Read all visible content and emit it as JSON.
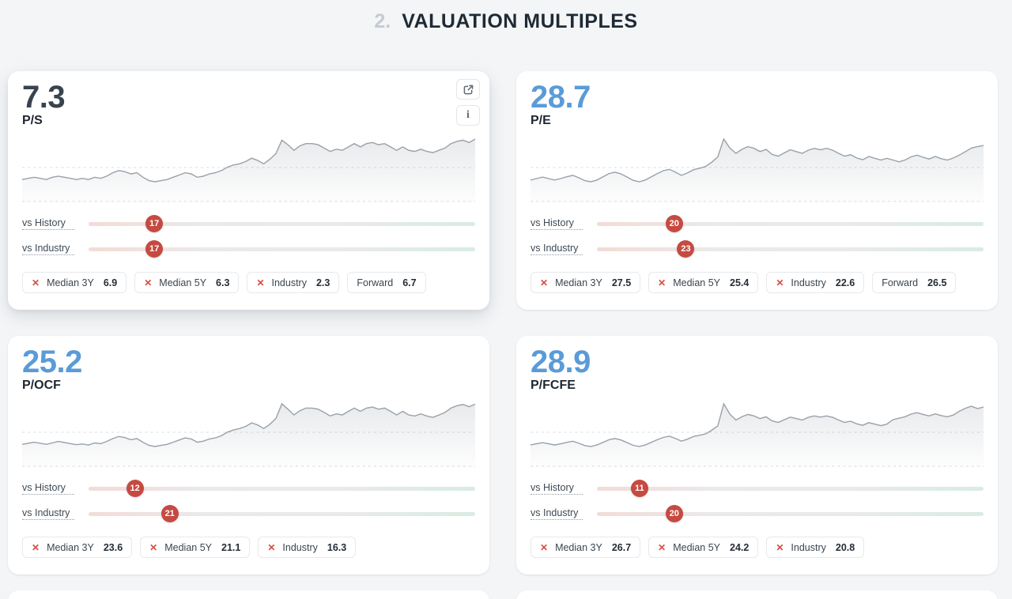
{
  "header": {
    "section_number": "2.",
    "section_title": "VALUATION MULTIPLES"
  },
  "ui": {
    "info_glyph": "i",
    "remove_glyph": "✕",
    "accent_blue": "#5a9bd8",
    "dark_value": "#39434e",
    "badge_red": "#c64a41",
    "line_gray": "#99a1a9"
  },
  "cards": [
    {
      "id": "ps",
      "value": "7.3",
      "label": "P/S",
      "value_color": "#39434e",
      "hovered": true,
      "comparisons": [
        {
          "label": "vs History",
          "value": 17
        },
        {
          "label": "vs Industry",
          "value": 17
        }
      ],
      "chips": [
        {
          "label": "Median 3Y",
          "value": "6.9",
          "removable": true
        },
        {
          "label": "Median 5Y",
          "value": "6.3",
          "removable": true
        },
        {
          "label": "Industry",
          "value": "2.3",
          "removable": true
        },
        {
          "label": "Forward",
          "value": "6.7",
          "removable": false
        }
      ],
      "sparkline": {
        "type": "line",
        "gridline_pct": 50,
        "values": [
          3.7,
          3.8,
          3.9,
          3.8,
          3.7,
          3.9,
          4.0,
          3.9,
          3.8,
          3.7,
          3.8,
          3.7,
          3.9,
          3.8,
          4.0,
          4.3,
          4.5,
          4.4,
          4.2,
          4.3,
          3.9,
          3.6,
          3.5,
          3.6,
          3.7,
          3.9,
          4.1,
          4.3,
          4.2,
          3.9,
          4.0,
          4.2,
          4.3,
          4.5,
          4.8,
          5.0,
          5.1,
          5.3,
          5.6,
          5.4,
          5.1,
          5.5,
          6.0,
          7.2,
          6.8,
          6.3,
          6.7,
          6.9,
          6.9,
          6.8,
          6.5,
          6.2,
          6.4,
          6.3,
          6.6,
          6.9,
          6.6,
          6.9,
          7.0,
          6.8,
          6.9,
          6.6,
          6.3,
          6.6,
          6.3,
          6.2,
          6.4,
          6.2,
          6.1,
          6.3,
          6.5,
          6.9,
          7.1,
          7.2,
          7.0,
          7.3
        ]
      }
    },
    {
      "id": "pe",
      "value": "28.7",
      "label": "P/E",
      "value_color": "#5a9bd8",
      "hovered": false,
      "comparisons": [
        {
          "label": "vs History",
          "value": 20
        },
        {
          "label": "vs Industry",
          "value": 23
        }
      ],
      "chips": [
        {
          "label": "Median 3Y",
          "value": "27.5",
          "removable": true
        },
        {
          "label": "Median 5Y",
          "value": "25.4",
          "removable": true
        },
        {
          "label": "Industry",
          "value": "22.6",
          "removable": true
        },
        {
          "label": "Forward",
          "value": "26.5",
          "removable": false
        }
      ],
      "sparkline": {
        "type": "line",
        "gridline_pct": 50,
        "values": [
          19.0,
          19.4,
          19.8,
          19.4,
          19.0,
          19.4,
          19.9,
          20.3,
          19.6,
          18.8,
          18.5,
          19.0,
          19.9,
          20.8,
          21.2,
          20.7,
          19.8,
          18.9,
          18.5,
          19.0,
          19.9,
          20.8,
          21.6,
          22.0,
          21.2,
          20.3,
          21.0,
          21.9,
          22.3,
          22.8,
          24.0,
          25.5,
          30.5,
          28.0,
          26.5,
          27.6,
          28.4,
          27.9,
          27.0,
          27.6,
          26.2,
          25.7,
          26.6,
          27.5,
          27.0,
          26.5,
          27.4,
          27.9,
          27.5,
          27.9,
          27.4,
          26.5,
          25.7,
          26.1,
          25.2,
          24.7,
          25.6,
          25.1,
          24.6,
          25.1,
          24.6,
          24.1,
          24.6,
          25.5,
          26.0,
          25.4,
          24.9,
          25.6,
          25.0,
          24.6,
          25.2,
          26.0,
          27.0,
          28.0,
          28.4,
          28.7
        ]
      }
    },
    {
      "id": "pocf",
      "value": "25.2",
      "label": "P/OCF",
      "value_color": "#5a9bd8",
      "hovered": false,
      "comparisons": [
        {
          "label": "vs History",
          "value": 12
        },
        {
          "label": "vs Industry",
          "value": 21
        }
      ],
      "chips": [
        {
          "label": "Median 3Y",
          "value": "23.6",
          "removable": true
        },
        {
          "label": "Median 5Y",
          "value": "21.1",
          "removable": true
        },
        {
          "label": "Industry",
          "value": "16.3",
          "removable": true
        }
      ],
      "sparkline": {
        "type": "line",
        "gridline_pct": 50,
        "values": [
          14.0,
          14.3,
          14.6,
          14.3,
          14.0,
          14.4,
          14.8,
          14.5,
          14.2,
          13.9,
          14.1,
          13.8,
          14.4,
          14.2,
          14.8,
          15.6,
          16.2,
          15.9,
          15.3,
          15.6,
          14.6,
          13.7,
          13.4,
          13.7,
          14.0,
          14.6,
          15.2,
          15.8,
          15.5,
          14.6,
          14.9,
          15.5,
          15.8,
          16.4,
          17.4,
          18.0,
          18.4,
          19.0,
          20.0,
          19.4,
          18.4,
          19.6,
          21.2,
          25.3,
          23.8,
          22.2,
          23.4,
          24.1,
          24.1,
          23.8,
          22.9,
          21.9,
          22.5,
          22.2,
          23.2,
          24.1,
          23.2,
          24.1,
          24.4,
          23.8,
          24.1,
          23.2,
          22.2,
          23.2,
          22.2,
          21.9,
          22.5,
          21.9,
          21.5,
          22.2,
          22.9,
          24.1,
          24.8,
          25.1,
          24.5,
          25.2
        ]
      }
    },
    {
      "id": "pfcfe",
      "value": "28.9",
      "label": "P/FCFE",
      "value_color": "#5a9bd8",
      "hovered": false,
      "comparisons": [
        {
          "label": "vs History",
          "value": 11
        },
        {
          "label": "vs Industry",
          "value": 20
        }
      ],
      "chips": [
        {
          "label": "Median 3Y",
          "value": "26.7",
          "removable": true
        },
        {
          "label": "Median 5Y",
          "value": "24.2",
          "removable": true
        },
        {
          "label": "Industry",
          "value": "20.8",
          "removable": true
        }
      ],
      "sparkline": {
        "type": "line",
        "gridline_pct": 50,
        "values": [
          16.0,
          16.4,
          16.8,
          16.4,
          16.0,
          16.4,
          16.9,
          17.3,
          16.6,
          15.8,
          15.5,
          16.0,
          16.9,
          17.8,
          18.2,
          17.7,
          16.8,
          15.9,
          15.5,
          16.0,
          16.9,
          17.8,
          18.6,
          19.0,
          18.2,
          17.3,
          18.0,
          18.9,
          19.3,
          19.8,
          21.0,
          22.5,
          30.0,
          26.5,
          24.5,
          25.6,
          26.4,
          25.9,
          25.0,
          25.6,
          24.2,
          23.7,
          24.6,
          25.5,
          25.0,
          24.5,
          25.4,
          25.9,
          25.5,
          25.9,
          25.4,
          24.5,
          23.7,
          24.1,
          23.2,
          22.7,
          23.6,
          23.1,
          22.6,
          23.1,
          24.6,
          25.1,
          25.6,
          26.5,
          27.0,
          26.4,
          25.9,
          26.6,
          26.0,
          25.6,
          26.2,
          27.5,
          28.5,
          29.2,
          28.4,
          28.9
        ]
      }
    }
  ]
}
